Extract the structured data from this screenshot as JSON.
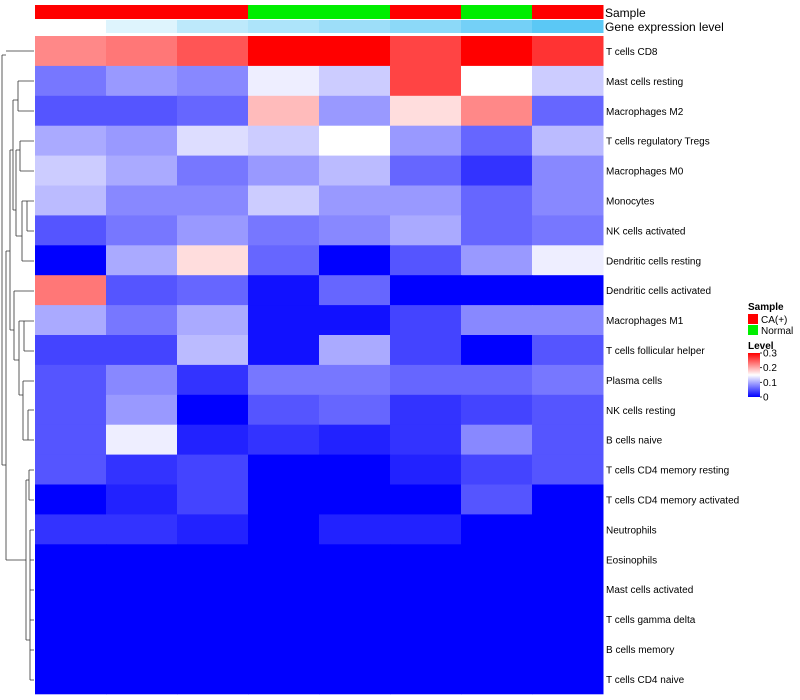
{
  "chart_data": {
    "type": "heatmap",
    "title": "",
    "annotation_track_labels": {
      "sample": "Sample",
      "gene_expression": "Gene expression level"
    },
    "column_sample": [
      "CA(+)",
      "CA(+)",
      "CA(+)",
      "Normal",
      "Normal",
      "CA(+)",
      "Normal",
      "CA(+)"
    ],
    "column_gene_expression": [
      0.0,
      0.2,
      0.4,
      0.5,
      0.6,
      0.7,
      0.85,
      1.0
    ],
    "rows": [
      "T cells CD8",
      "Mast cells resting",
      "Macrophages M2",
      "T cells regulatory  Tregs",
      "Macrophages M0",
      "Monocytes",
      "NK cells activated",
      "Dendritic cells resting",
      "Dendritic cells activated",
      "Macrophages M1",
      "T cells follicular helper",
      "Plasma cells",
      "NK cells resting",
      "B cells naive",
      "T cells CD4 memory resting",
      "T cells CD4 memory activated",
      "Neutrophils",
      "Eosinophils",
      "Mast cells activated",
      "T cells gamma delta",
      "B cells memory",
      "T cells CD4 naive"
    ],
    "values": [
      [
        0.22,
        0.23,
        0.25,
        0.3,
        0.3,
        0.26,
        0.3,
        0.27
      ],
      [
        0.07,
        0.09,
        0.08,
        0.14,
        0.12,
        0.26,
        0.15,
        0.12
      ],
      [
        0.05,
        0.05,
        0.06,
        0.19,
        0.09,
        0.17,
        0.22,
        0.06
      ],
      [
        0.1,
        0.09,
        0.13,
        0.12,
        0.15,
        0.09,
        0.06,
        0.11
      ],
      [
        0.12,
        0.1,
        0.07,
        0.09,
        0.11,
        0.06,
        0.03,
        0.08
      ],
      [
        0.11,
        0.08,
        0.08,
        0.12,
        0.09,
        0.09,
        0.06,
        0.08
      ],
      [
        0.05,
        0.07,
        0.09,
        0.07,
        0.08,
        0.1,
        0.06,
        0.07
      ],
      [
        0.0,
        0.1,
        0.17,
        0.06,
        0.0,
        0.05,
        0.09,
        0.14
      ],
      [
        0.23,
        0.05,
        0.06,
        0.01,
        0.06,
        0.0,
        0.0,
        0.0
      ],
      [
        0.1,
        0.07,
        0.1,
        0.01,
        0.01,
        0.04,
        0.08,
        0.08
      ],
      [
        0.04,
        0.04,
        0.11,
        0.01,
        0.1,
        0.04,
        0.0,
        0.05
      ],
      [
        0.05,
        0.08,
        0.03,
        0.07,
        0.07,
        0.06,
        0.06,
        0.07
      ],
      [
        0.05,
        0.09,
        0.0,
        0.05,
        0.06,
        0.03,
        0.04,
        0.05
      ],
      [
        0.05,
        0.14,
        0.02,
        0.03,
        0.02,
        0.03,
        0.08,
        0.05
      ],
      [
        0.05,
        0.03,
        0.04,
        0.0,
        0.0,
        0.02,
        0.04,
        0.05
      ],
      [
        0.0,
        0.02,
        0.04,
        0.0,
        0.0,
        0.0,
        0.05,
        0.0
      ],
      [
        0.03,
        0.03,
        0.02,
        0.0,
        0.02,
        0.02,
        0.0,
        0.0
      ],
      [
        0.0,
        0.0,
        0.0,
        0.0,
        0.0,
        0.0,
        0.0,
        0.0
      ],
      [
        0.0,
        0.0,
        0.0,
        0.0,
        0.0,
        0.0,
        0.0,
        0.0
      ],
      [
        0.0,
        0.0,
        0.0,
        0.0,
        0.0,
        0.0,
        0.0,
        0.0
      ],
      [
        0.0,
        0.0,
        0.0,
        0.0,
        0.0,
        0.0,
        0.0,
        0.0
      ],
      [
        0.0,
        0.0,
        0.0,
        0.0,
        0.0,
        0.0,
        0.0,
        0.0
      ]
    ],
    "color_scale": {
      "min": 0,
      "max": 0.3,
      "low": "#0000ff",
      "mid": "#ffffff",
      "high": "#ff0000",
      "mid_value": 0.15
    },
    "legend": {
      "sample_title": "Sample",
      "sample_entries": [
        {
          "label": "CA(+)",
          "color": "#ff0000"
        },
        {
          "label": "Normal",
          "color": "#00ee00"
        }
      ],
      "level_title": "Level",
      "level_ticks": [
        "0.3",
        "0.2",
        "0.1",
        "0"
      ],
      "level_tick_values": [
        0.3,
        0.2,
        0.1,
        0
      ],
      "placement": "right"
    },
    "gene_expression_colors": {
      "low": "#ffffff",
      "high": "#5bc8f5"
    },
    "dendrogram": "row clustering tree on left"
  }
}
